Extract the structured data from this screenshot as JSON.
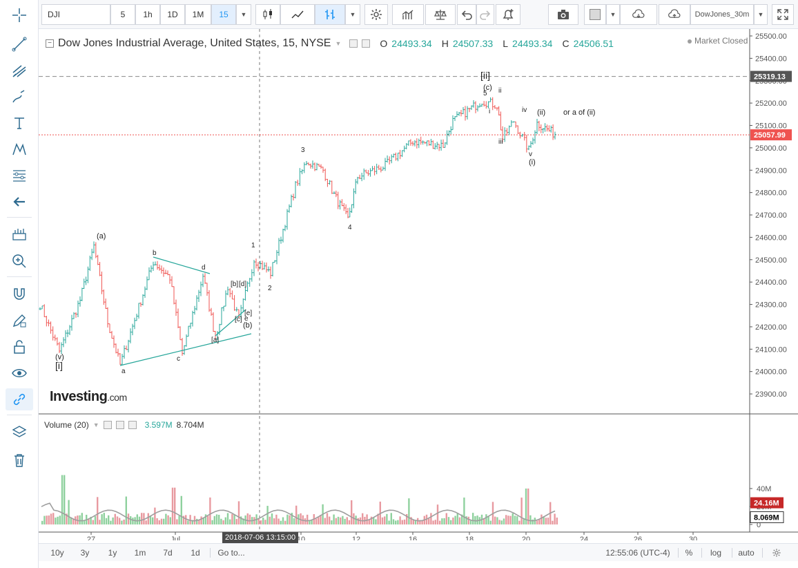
{
  "symbol": "DJI",
  "intervals": [
    {
      "label": "5",
      "active": false
    },
    {
      "label": "1h",
      "active": false
    },
    {
      "label": "1D",
      "active": false
    },
    {
      "label": "1M",
      "active": false
    },
    {
      "label": "15",
      "active": true
    }
  ],
  "layout_name": "DowJones_30m",
  "legend": {
    "title": "Dow Jones Industrial Average, United States, 15, NYSE",
    "open_label": "O",
    "open": "24493.34",
    "high_label": "H",
    "high": "24507.33",
    "low_label": "L",
    "low": "24493.34",
    "close_label": "C",
    "close": "24506.51"
  },
  "market_status": "Market Closed",
  "volume_legend": {
    "title": "Volume (20)",
    "value1": "3.597M",
    "value2": "8.704M"
  },
  "watermark": {
    "brand": "Investing",
    "suffix": ".com"
  },
  "crosshair_date": "2018-07-06 13:15:00",
  "price_ticks": [
    "25500.00",
    "25400.00",
    "25300.00",
    "25200.00",
    "25100.00",
    "25000.00",
    "24900.00",
    "24800.00",
    "24700.00",
    "24600.00",
    "24500.00",
    "24400.00",
    "24300.00",
    "24200.00",
    "24100.00",
    "24000.00",
    "23900.00"
  ],
  "price_tick_values": [
    25500,
    25400,
    25300,
    25200,
    25100,
    25000,
    24900,
    24800,
    24700,
    24600,
    24500,
    24400,
    24300,
    24200,
    24100,
    24000,
    23900
  ],
  "price_labels": {
    "resistance": "25319.13",
    "last": "25057.99"
  },
  "price_label_values": {
    "resistance": 25319.13,
    "last": 25057.99
  },
  "volume_ticks": [
    {
      "label": "40M",
      "value": 40
    },
    {
      "label": "20M",
      "value": 20
    },
    {
      "label": "0",
      "value": 0
    }
  ],
  "volume_labels": {
    "last": "24.16M",
    "ma": "8.069M"
  },
  "volume_label_values": {
    "last": 24.16,
    "ma": 8.069
  },
  "date_ticks": [
    "27",
    "Jul",
    "10",
    "12",
    "16",
    "18",
    "20",
    "24",
    "26",
    "30"
  ],
  "timezone": "12:55:06 (UTC-4)",
  "range_buttons": [
    "10y",
    "3y",
    "1y",
    "1m",
    "7d",
    "1d"
  ],
  "goto_label": "Go to...",
  "scale_buttons": [
    "%",
    "log",
    "auto"
  ],
  "colors": {
    "up": "#26a69a",
    "down": "#ef5350",
    "accent": "#2196f3",
    "trendline": "#26a69a",
    "vol_up": "#8fd19e",
    "vol_down": "#e89aa0"
  },
  "wave_labels": [
    "(a)",
    "(v)",
    "[i]",
    "a",
    "b",
    "c",
    "d",
    "[a]",
    "[b]",
    "[d]",
    "[c]",
    "[e]",
    "e",
    "(b)",
    "1",
    "2",
    "3",
    "4",
    "[ii]",
    "(c)",
    "5",
    "i",
    "ii",
    "iii",
    "iv",
    "v",
    "(i)",
    "(ii)",
    "or a of (ii)"
  ],
  "chart_data": {
    "type": "candlestick",
    "title": "Dow Jones Industrial Average, United States, 15, NYSE",
    "ylim": [
      23850,
      25550
    ],
    "anchors": [
      {
        "x": "Jun 25",
        "y": 24300
      },
      {
        "x": "Jun 26",
        "y": 24090
      },
      {
        "x": "Jun 26",
        "y": 24320
      },
      {
        "x": "Jun 27",
        "y": 24560
      },
      {
        "x": "Jun 27",
        "y": 24220
      },
      {
        "x": "Jun 28",
        "y": 24030
      },
      {
        "x": "Jun 29",
        "y": 24490
      },
      {
        "x": "Jun 29",
        "y": 24420
      },
      {
        "x": "Jul 2",
        "y": 24080
      },
      {
        "x": "Jul 3",
        "y": 24430
      },
      {
        "x": "Jul 3",
        "y": 24150
      },
      {
        "x": "Jul 5",
        "y": 24380
      },
      {
        "x": "Jul 5",
        "y": 24230
      },
      {
        "x": "Jul 6",
        "y": 24500
      },
      {
        "x": "Jul 6",
        "y": 24440
      },
      {
        "x": "Jul 9",
        "y": 24830
      },
      {
        "x": "Jul 10",
        "y": 24940
      },
      {
        "x": "Jul 10",
        "y": 24900
      },
      {
        "x": "Jul 11",
        "y": 24790
      },
      {
        "x": "Jul 12",
        "y": 24680
      },
      {
        "x": "Jul 12",
        "y": 24870
      },
      {
        "x": "Jul 13",
        "y": 24920
      },
      {
        "x": "Jul 16",
        "y": 25030
      },
      {
        "x": "Jul 17",
        "y": 25010
      },
      {
        "x": "Jul 17",
        "y": 25120
      },
      {
        "x": "Jul 18",
        "y": 25210
      },
      {
        "x": "Jul 18",
        "y": 25190
      },
      {
        "x": "Jul 19",
        "y": 25040
      },
      {
        "x": "Jul 19",
        "y": 25120
      },
      {
        "x": "Jul 20",
        "y": 24990
      },
      {
        "x": "Jul 20",
        "y": 25110
      },
      {
        "x": "Jul 20",
        "y": 25060
      }
    ]
  }
}
